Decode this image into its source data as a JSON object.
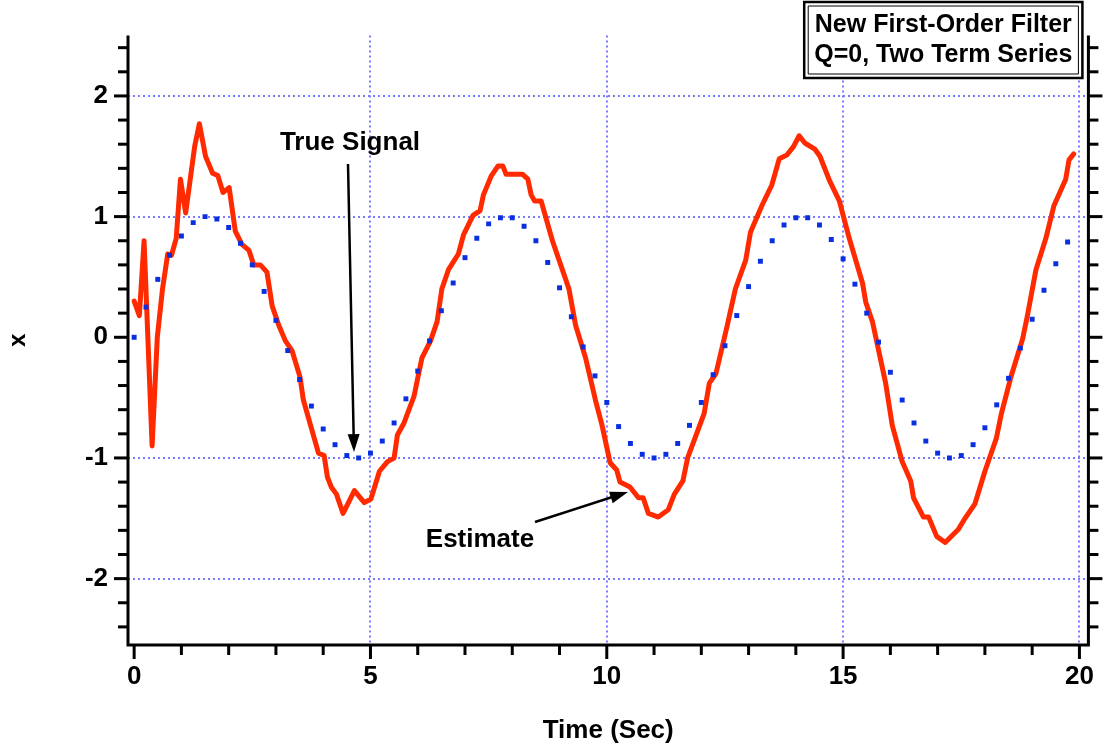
{
  "chart_data": {
    "type": "line",
    "title": "New First-Order Filter",
    "subtitle": "Q=0, Two Term Series",
    "xlabel": "Time (Sec)",
    "ylabel": "x",
    "x": [
      0,
      0.25,
      0.5,
      0.75,
      1,
      1.25,
      1.5,
      1.75,
      2,
      2.25,
      2.5,
      2.75,
      3,
      3.25,
      3.5,
      3.75,
      4,
      4.25,
      4.5,
      4.75,
      5,
      5.25,
      5.5,
      5.75,
      6,
      6.25,
      6.5,
      6.75,
      7,
      7.25,
      7.5,
      7.75,
      8,
      8.25,
      8.5,
      8.75,
      9,
      9.25,
      9.5,
      9.75,
      10,
      10.25,
      10.5,
      10.75,
      11,
      11.25,
      11.5,
      11.75,
      12,
      12.25,
      12.5,
      12.75,
      13,
      13.25,
      13.5,
      13.75,
      14,
      14.25,
      14.5,
      14.75,
      15,
      15.25,
      15.5,
      15.75,
      16,
      16.25,
      16.5,
      16.75,
      17,
      17.25,
      17.5,
      17.75,
      18,
      18.25,
      18.5,
      18.75,
      19,
      19.25,
      19.5,
      19.75
    ],
    "series": [
      {
        "type": "scatter",
        "marker": "square",
        "color": "#0a2fe0",
        "values": [
          0,
          0.25,
          0.48,
          0.68,
          0.84,
          0.95,
          1.0,
          0.98,
          0.91,
          0.78,
          0.6,
          0.38,
          0.14,
          -0.11,
          -0.35,
          -0.57,
          -0.76,
          -0.89,
          -0.98,
          -1.0,
          -0.96,
          -0.86,
          -0.71,
          -0.51,
          -0.28,
          -0.03,
          0.22,
          0.45,
          0.66,
          0.82,
          0.94,
          0.99,
          0.99,
          0.92,
          0.8,
          0.62,
          0.41,
          0.17,
          -0.08,
          -0.32,
          -0.54,
          -0.74,
          -0.88,
          -0.97,
          -1.0,
          -0.97,
          -0.88,
          -0.73,
          -0.54,
          -0.31,
          -0.07,
          0.18,
          0.42,
          0.63,
          0.8,
          0.93,
          0.99,
          0.99,
          0.93,
          0.81,
          0.65,
          0.44,
          0.2,
          -0.04,
          -0.29,
          -0.52,
          -0.71,
          -0.86,
          -0.96,
          -1.0,
          -0.98,
          -0.89,
          -0.75,
          -0.56,
          -0.34,
          -0.09,
          0.15,
          0.39,
          0.61,
          0.79
        ]
      },
      {
        "type": "line",
        "color": "#ff2a00",
        "x": [
          0,
          0.11,
          0.21,
          0.38,
          0.49,
          0.6,
          0.71,
          0.79,
          0.89,
          0.98,
          1.09,
          1.28,
          1.38,
          1.51,
          1.66,
          1.77,
          1.88,
          2.01,
          2.14,
          2.28,
          2.43,
          2.53,
          2.67,
          2.81,
          2.92,
          3.06,
          3.2,
          3.34,
          3.51,
          3.58,
          3.9,
          4.02,
          4.09,
          4.17,
          4.28,
          4.42,
          4.66,
          4.87,
          5.01,
          5.19,
          5.36,
          5.5,
          5.57,
          5.71,
          5.92,
          6.09,
          6.27,
          6.41,
          6.51,
          6.65,
          6.86,
          6.97,
          7.17,
          7.32,
          7.39,
          7.56,
          7.7,
          7.8,
          7.87,
          8.22,
          8.33,
          8.4,
          8.47,
          8.61,
          8.85,
          9.2,
          9.34,
          9.55,
          9.76,
          9.9,
          10.07,
          10.21,
          10.28,
          10.49,
          10.67,
          10.77,
          10.88,
          11.09,
          11.3,
          11.43,
          11.61,
          11.71,
          11.89,
          12.06,
          12.17,
          12.31,
          12.55,
          12.72,
          12.94,
          13.04,
          13.28,
          13.49,
          13.65,
          13.81,
          13.95,
          14.07,
          14.19,
          14.4,
          14.51,
          14.71,
          14.92,
          15.13,
          15.41,
          15.48,
          15.62,
          15.9,
          16.04,
          16.25,
          16.43,
          16.49,
          16.7,
          16.81,
          16.98,
          17.16,
          17.44,
          17.58,
          17.79,
          18,
          18.24,
          18.35,
          18.55,
          18.8,
          18.9,
          19.08,
          19.29,
          19.46,
          19.71,
          19.78,
          19.88
        ],
        "values": [
          0.3,
          0.18,
          0.8,
          -0.9,
          0,
          0.4,
          0.69,
          0.68,
          0.82,
          1.31,
          1.03,
          1.58,
          1.77,
          1.5,
          1.36,
          1.34,
          1.2,
          1.24,
          0.88,
          0.77,
          0.72,
          0.6,
          0.6,
          0.54,
          0.26,
          0.1,
          -0.03,
          -0.11,
          -0.33,
          -0.52,
          -0.96,
          -0.98,
          -1.16,
          -1.24,
          -1.3,
          -1.46,
          -1.27,
          -1.37,
          -1.34,
          -1.11,
          -1.03,
          -1,
          -0.81,
          -0.71,
          -0.49,
          -0.17,
          -0.03,
          0.13,
          0.4,
          0.56,
          0.69,
          0.85,
          1.01,
          1.05,
          1.18,
          1.34,
          1.42,
          1.42,
          1.35,
          1.35,
          1.31,
          1.18,
          1.13,
          1.13,
          0.8,
          0.4,
          0.1,
          -0.17,
          -0.52,
          -0.73,
          -1.04,
          -1.1,
          -1.2,
          -1.24,
          -1.33,
          -1.33,
          -1.46,
          -1.49,
          -1.43,
          -1.3,
          -1.19,
          -1,
          -0.81,
          -0.63,
          -0.38,
          -0.3,
          0.1,
          0.4,
          0.64,
          0.87,
          1.09,
          1.26,
          1.48,
          1.51,
          1.58,
          1.67,
          1.61,
          1.56,
          1.5,
          1.3,
          1.13,
          0.82,
          0.45,
          0.29,
          0.13,
          -0.38,
          -0.73,
          -1.03,
          -1.19,
          -1.33,
          -1.49,
          -1.49,
          -1.65,
          -1.7,
          -1.59,
          -1.5,
          -1.38,
          -1.11,
          -0.84,
          -0.63,
          -0.33,
          -0.01,
          0.18,
          0.56,
          0.82,
          1.09,
          1.31,
          1.47,
          1.52
        ]
      }
    ],
    "xlim": [
      -0.13,
      20.19
    ],
    "ylim": [
      -2.55,
      2.5
    ],
    "xticks": [
      0,
      {
        "value": 1,
        "label": null
      },
      {
        "value": 2,
        "label": null
      },
      {
        "value": 3,
        "label": null
      },
      {
        "value": 4,
        "label": null
      },
      5,
      {
        "value": 6,
        "label": null
      },
      {
        "value": 7,
        "label": null
      },
      {
        "value": 8,
        "label": null
      },
      {
        "value": 9,
        "label": null
      },
      10,
      {
        "value": 11,
        "label": null
      },
      {
        "value": 12,
        "label": null
      },
      {
        "value": 13,
        "label": null
      },
      {
        "value": 14,
        "label": null
      },
      15,
      {
        "value": 16,
        "label": null
      },
      {
        "value": 17,
        "label": null
      },
      {
        "value": 18,
        "label": null
      },
      {
        "value": 19,
        "label": null
      },
      20
    ],
    "yticks": [
      {
        "value": -2.4,
        "label": null
      },
      {
        "value": -2.2,
        "label": null
      },
      -2,
      {
        "value": -1.8,
        "label": null
      },
      {
        "value": -1.6,
        "label": null
      },
      {
        "value": -1.4,
        "label": null
      },
      {
        "value": -1.2,
        "label": null
      },
      -1,
      {
        "value": -0.8,
        "label": null
      },
      {
        "value": -0.6,
        "label": null
      },
      {
        "value": -0.4,
        "label": null
      },
      {
        "value": -0.2,
        "label": null
      },
      0,
      {
        "value": 0.2,
        "label": null
      },
      {
        "value": 0.4,
        "label": null
      },
      {
        "value": 0.6,
        "label": null
      },
      {
        "value": 0.8,
        "label": null
      },
      1,
      {
        "value": 1.2,
        "label": null
      },
      {
        "value": 1.4,
        "label": null
      },
      {
        "value": 1.6,
        "label": null
      },
      {
        "value": 1.8,
        "label": null
      },
      2,
      {
        "value": 2.2,
        "label": null
      },
      {
        "value": 2.4,
        "label": null
      }
    ],
    "grid": true,
    "legend": false,
    "annotations": [
      "True Signal",
      "Estimate"
    ]
  }
}
